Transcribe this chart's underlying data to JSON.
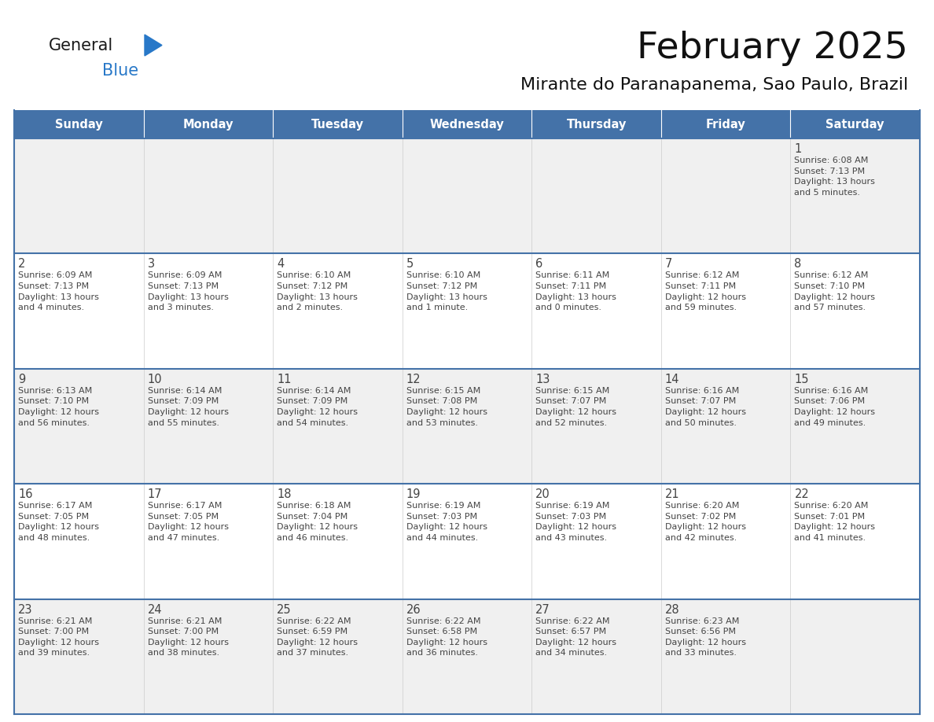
{
  "title": "February 2025",
  "subtitle": "Mirante do Paranapanema, Sao Paulo, Brazil",
  "header_color": "#4472A8",
  "header_text_color": "#FFFFFF",
  "cell_bg_even": "#F0F0F0",
  "cell_bg_odd": "#FFFFFF",
  "border_color": "#4472A8",
  "text_color": "#444444",
  "day_names": [
    "Sunday",
    "Monday",
    "Tuesday",
    "Wednesday",
    "Thursday",
    "Friday",
    "Saturday"
  ],
  "weeks": [
    [
      {
        "day": "",
        "info": ""
      },
      {
        "day": "",
        "info": ""
      },
      {
        "day": "",
        "info": ""
      },
      {
        "day": "",
        "info": ""
      },
      {
        "day": "",
        "info": ""
      },
      {
        "day": "",
        "info": ""
      },
      {
        "day": "1",
        "info": "Sunrise: 6:08 AM\nSunset: 7:13 PM\nDaylight: 13 hours\nand 5 minutes."
      }
    ],
    [
      {
        "day": "2",
        "info": "Sunrise: 6:09 AM\nSunset: 7:13 PM\nDaylight: 13 hours\nand 4 minutes."
      },
      {
        "day": "3",
        "info": "Sunrise: 6:09 AM\nSunset: 7:13 PM\nDaylight: 13 hours\nand 3 minutes."
      },
      {
        "day": "4",
        "info": "Sunrise: 6:10 AM\nSunset: 7:12 PM\nDaylight: 13 hours\nand 2 minutes."
      },
      {
        "day": "5",
        "info": "Sunrise: 6:10 AM\nSunset: 7:12 PM\nDaylight: 13 hours\nand 1 minute."
      },
      {
        "day": "6",
        "info": "Sunrise: 6:11 AM\nSunset: 7:11 PM\nDaylight: 13 hours\nand 0 minutes."
      },
      {
        "day": "7",
        "info": "Sunrise: 6:12 AM\nSunset: 7:11 PM\nDaylight: 12 hours\nand 59 minutes."
      },
      {
        "day": "8",
        "info": "Sunrise: 6:12 AM\nSunset: 7:10 PM\nDaylight: 12 hours\nand 57 minutes."
      }
    ],
    [
      {
        "day": "9",
        "info": "Sunrise: 6:13 AM\nSunset: 7:10 PM\nDaylight: 12 hours\nand 56 minutes."
      },
      {
        "day": "10",
        "info": "Sunrise: 6:14 AM\nSunset: 7:09 PM\nDaylight: 12 hours\nand 55 minutes."
      },
      {
        "day": "11",
        "info": "Sunrise: 6:14 AM\nSunset: 7:09 PM\nDaylight: 12 hours\nand 54 minutes."
      },
      {
        "day": "12",
        "info": "Sunrise: 6:15 AM\nSunset: 7:08 PM\nDaylight: 12 hours\nand 53 minutes."
      },
      {
        "day": "13",
        "info": "Sunrise: 6:15 AM\nSunset: 7:07 PM\nDaylight: 12 hours\nand 52 minutes."
      },
      {
        "day": "14",
        "info": "Sunrise: 6:16 AM\nSunset: 7:07 PM\nDaylight: 12 hours\nand 50 minutes."
      },
      {
        "day": "15",
        "info": "Sunrise: 6:16 AM\nSunset: 7:06 PM\nDaylight: 12 hours\nand 49 minutes."
      }
    ],
    [
      {
        "day": "16",
        "info": "Sunrise: 6:17 AM\nSunset: 7:05 PM\nDaylight: 12 hours\nand 48 minutes."
      },
      {
        "day": "17",
        "info": "Sunrise: 6:17 AM\nSunset: 7:05 PM\nDaylight: 12 hours\nand 47 minutes."
      },
      {
        "day": "18",
        "info": "Sunrise: 6:18 AM\nSunset: 7:04 PM\nDaylight: 12 hours\nand 46 minutes."
      },
      {
        "day": "19",
        "info": "Sunrise: 6:19 AM\nSunset: 7:03 PM\nDaylight: 12 hours\nand 44 minutes."
      },
      {
        "day": "20",
        "info": "Sunrise: 6:19 AM\nSunset: 7:03 PM\nDaylight: 12 hours\nand 43 minutes."
      },
      {
        "day": "21",
        "info": "Sunrise: 6:20 AM\nSunset: 7:02 PM\nDaylight: 12 hours\nand 42 minutes."
      },
      {
        "day": "22",
        "info": "Sunrise: 6:20 AM\nSunset: 7:01 PM\nDaylight: 12 hours\nand 41 minutes."
      }
    ],
    [
      {
        "day": "23",
        "info": "Sunrise: 6:21 AM\nSunset: 7:00 PM\nDaylight: 12 hours\nand 39 minutes."
      },
      {
        "day": "24",
        "info": "Sunrise: 6:21 AM\nSunset: 7:00 PM\nDaylight: 12 hours\nand 38 minutes."
      },
      {
        "day": "25",
        "info": "Sunrise: 6:22 AM\nSunset: 6:59 PM\nDaylight: 12 hours\nand 37 minutes."
      },
      {
        "day": "26",
        "info": "Sunrise: 6:22 AM\nSunset: 6:58 PM\nDaylight: 12 hours\nand 36 minutes."
      },
      {
        "day": "27",
        "info": "Sunrise: 6:22 AM\nSunset: 6:57 PM\nDaylight: 12 hours\nand 34 minutes."
      },
      {
        "day": "28",
        "info": "Sunrise: 6:23 AM\nSunset: 6:56 PM\nDaylight: 12 hours\nand 33 minutes."
      },
      {
        "day": "",
        "info": ""
      }
    ]
  ],
  "logo_general_color": "#1a1a1a",
  "logo_blue_color": "#2878C8",
  "logo_triangle_color": "#2878C8"
}
